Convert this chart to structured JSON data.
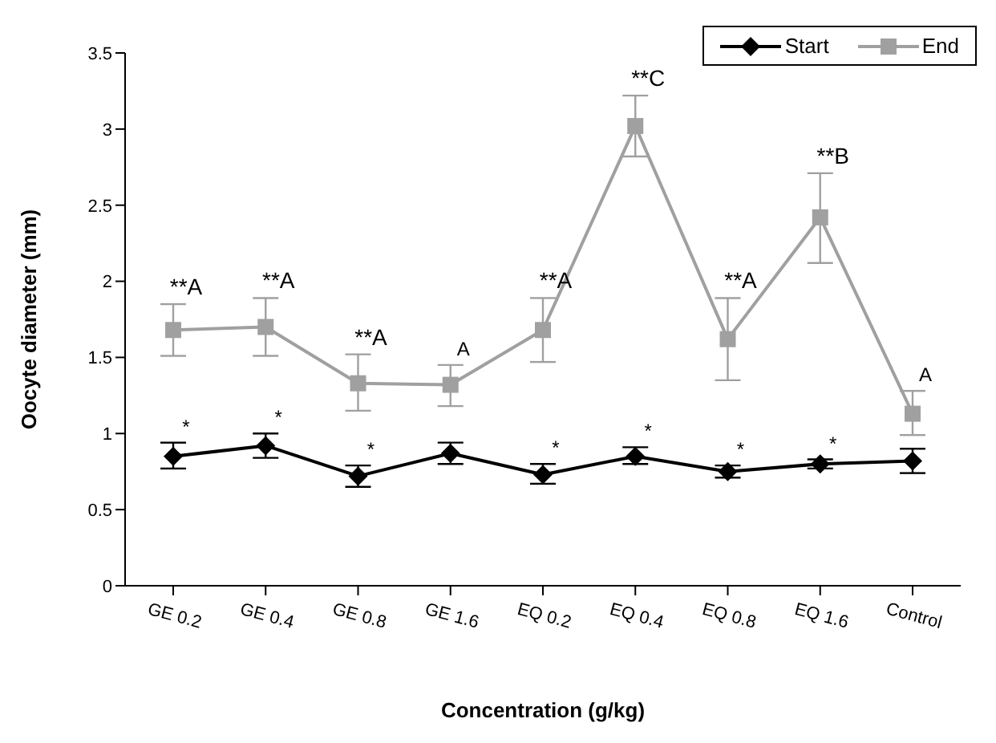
{
  "chart_data": {
    "type": "line",
    "xlabel": "Concentration (g/kg)",
    "ylabel": "Oocyte diameter (mm)",
    "categories": [
      "GE 0.2",
      "GE 0.4",
      "GE 0.8",
      "GE 1.6",
      "EQ 0.2",
      "EQ 0.4",
      "EQ 0.8",
      "EQ 1.6",
      "Control"
    ],
    "series": [
      {
        "name": "Start",
        "color": "#000000",
        "marker": "diamond",
        "values": [
          0.85,
          0.92,
          0.72,
          0.87,
          0.73,
          0.85,
          0.75,
          0.8,
          0.82
        ],
        "errors": [
          [
            0.77,
            0.94
          ],
          [
            0.84,
            1.0
          ],
          [
            0.65,
            0.79
          ],
          [
            0.8,
            0.94
          ],
          [
            0.67,
            0.8
          ],
          [
            0.8,
            0.91
          ],
          [
            0.71,
            0.79
          ],
          [
            0.77,
            0.83
          ],
          [
            0.74,
            0.9
          ]
        ]
      },
      {
        "name": "End",
        "color": "#a0a0a0",
        "marker": "square",
        "values": [
          1.68,
          1.7,
          1.33,
          1.32,
          1.68,
          3.02,
          1.62,
          2.42,
          1.13
        ],
        "errors": [
          [
            1.51,
            1.85
          ],
          [
            1.51,
            1.89
          ],
          [
            1.15,
            1.52
          ],
          [
            1.18,
            1.45
          ],
          [
            1.47,
            1.89
          ],
          [
            2.82,
            3.22
          ],
          [
            1.35,
            1.89
          ],
          [
            2.12,
            2.71
          ],
          [
            0.99,
            1.28
          ]
        ]
      }
    ],
    "ylim": [
      0,
      3.5
    ],
    "yticks": [
      0,
      0.5,
      1,
      1.5,
      2,
      2.5,
      3,
      3.5
    ],
    "grid": false,
    "legend": "top right",
    "line_style": "solid",
    "annotations": [
      {
        "text": "**A",
        "x": "GE 0.2",
        "y": 1.68
      },
      {
        "text": "**A",
        "x": "GE 0.4",
        "y": 1.7
      },
      {
        "text": "**A",
        "x": "GE 0.8",
        "y": 1.33
      },
      {
        "text": "A",
        "x": "GE 1.6",
        "y": 1.32
      },
      {
        "text": "**A",
        "x": "EQ 0.2",
        "y": 1.68
      },
      {
        "text": "**C",
        "x": "EQ 0.4",
        "y": 3.02
      },
      {
        "text": "**A",
        "x": "EQ 0.8",
        "y": 1.62
      },
      {
        "text": "**B",
        "x": "EQ 1.6",
        "y": 2.42
      },
      {
        "text": "A",
        "x": "Control",
        "y": 1.13
      },
      {
        "text": "*",
        "x": "GE 0.2",
        "y": 0.85
      },
      {
        "text": "*",
        "x": "GE 0.4",
        "y": 0.92
      },
      {
        "text": "*",
        "x": "GE 0.8",
        "y": 0.72
      },
      {
        "text": "*",
        "x": "EQ 0.2",
        "y": 0.73
      },
      {
        "text": "*",
        "x": "EQ 0.4",
        "y": 0.85
      },
      {
        "text": "*",
        "x": "EQ 0.8",
        "y": 0.75
      },
      {
        "text": "*",
        "x": "EQ 1.6",
        "y": 0.8
      }
    ]
  }
}
